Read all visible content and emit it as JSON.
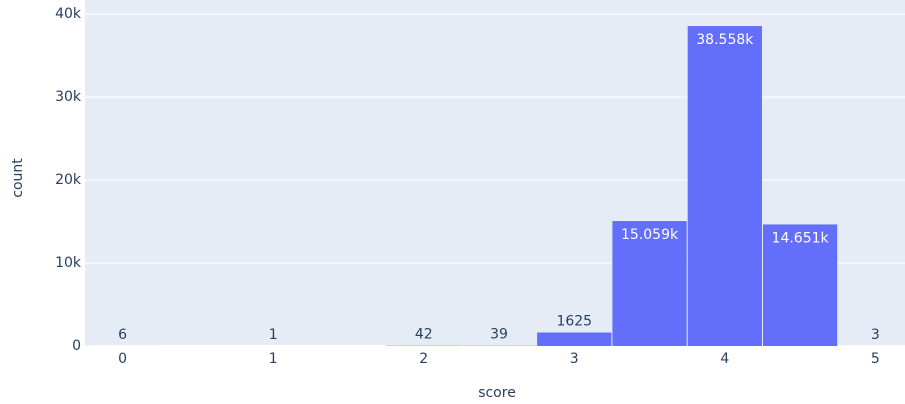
{
  "chart_data": {
    "type": "histogram",
    "x_label": "score",
    "y_label": "count",
    "bins": [
      -0.25,
      0.25,
      0.75,
      1.25,
      1.75,
      2.25,
      2.75,
      3.25,
      3.75,
      4.25,
      4.75,
      5.25
    ],
    "values": [
      6,
      0,
      1,
      0,
      42,
      39,
      1625,
      15059,
      38558,
      14651,
      3
    ],
    "value_labels": [
      "6",
      null,
      "1",
      null,
      "42",
      "39",
      "1625",
      "15.059k",
      "38.558k",
      "14.651k",
      "3"
    ],
    "color": "#636efa",
    "xlim": [
      -0.25,
      5.25
    ],
    "xticks": [
      0,
      1,
      2,
      3,
      4,
      5
    ],
    "ylim": [
      0,
      41700
    ],
    "yticks": [
      0,
      {
        "value": 10000,
        "label": "10k"
      },
      {
        "value": 20000,
        "label": "20k"
      },
      {
        "value": 30000,
        "label": "30k"
      },
      {
        "value": 40000,
        "label": "40k"
      }
    ],
    "grid": true
  }
}
